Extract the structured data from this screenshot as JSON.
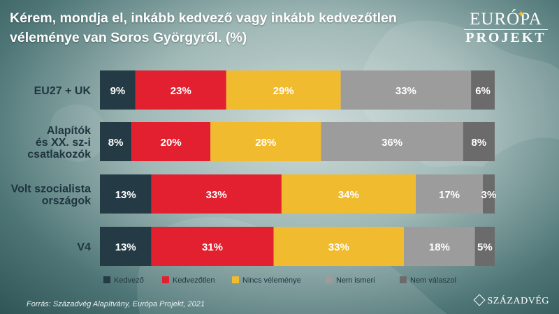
{
  "title": "Kérem, mondja el, inkább kedvező vagy inkább kedvezőtlen véleménye van Soros Györgyről. (%)",
  "logo": {
    "line1": "EURÓPA",
    "line2": "PROJEKT"
  },
  "source": "Forrás: Századvég Alapítvány, Európa Projekt, 2021",
  "brand": "SZÁZADVÉG",
  "chart_data": {
    "type": "bar",
    "orientation": "horizontal-stacked-100",
    "categories": [
      [
        "EU27 + UK"
      ],
      [
        "Alapítók",
        "és XX. sz-i",
        "csatlakozók"
      ],
      [
        "Volt szocialista",
        "országok"
      ],
      [
        "V4"
      ]
    ],
    "series": [
      {
        "name": "Kedvező",
        "color": "#243a44",
        "values": [
          9,
          8,
          13,
          13
        ]
      },
      {
        "name": "Kedvezőtlen",
        "color": "#e3202f",
        "values": [
          23,
          20,
          33,
          31
        ]
      },
      {
        "name": "Nincs véleménye",
        "color": "#f0bb2e",
        "values": [
          29,
          28,
          34,
          33
        ]
      },
      {
        "name": "Nem ismeri",
        "color": "#9c9c9c",
        "values": [
          33,
          36,
          17,
          18
        ]
      },
      {
        "name": "Nem válaszol",
        "color": "#6b6b6b",
        "values": [
          6,
          8,
          3,
          5
        ]
      }
    ],
    "value_suffix": "%",
    "legend_position": "bottom"
  }
}
